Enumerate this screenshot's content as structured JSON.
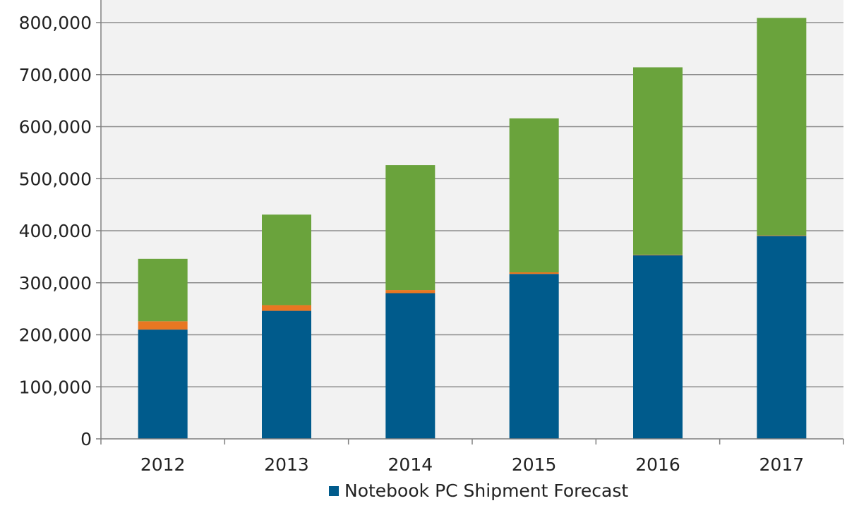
{
  "colors": {
    "plot_background": "#f2f2f2",
    "gridline": "#8c8c8c",
    "axis": "#808080",
    "text": "#222222"
  },
  "chart_data": {
    "type": "bar",
    "stacked": true,
    "categories": [
      "2012",
      "2013",
      "2014",
      "2015",
      "2016",
      "2017"
    ],
    "series": [
      {
        "name": "Notebook PC Shipment Forecast",
        "color": "#005b8c",
        "values": [
          210000,
          246000,
          280000,
          317000,
          353000,
          390000
        ]
      },
      {
        "color": "#e87722",
        "values": [
          16000,
          11000,
          6000,
          3000,
          1000,
          1000
        ]
      },
      {
        "color": "#6aa33c",
        "values": [
          120000,
          174000,
          240000,
          296000,
          360000,
          418000
        ]
      }
    ],
    "ylim": [
      0,
      800000
    ],
    "yticks": [
      "0",
      "100,000",
      "200,000",
      "300,000",
      "400,000",
      "500,000",
      "600,000",
      "700,000",
      "800,000"
    ],
    "grid": true,
    "legend_position": "bottom",
    "title": "",
    "xlabel": "",
    "ylabel": ""
  }
}
